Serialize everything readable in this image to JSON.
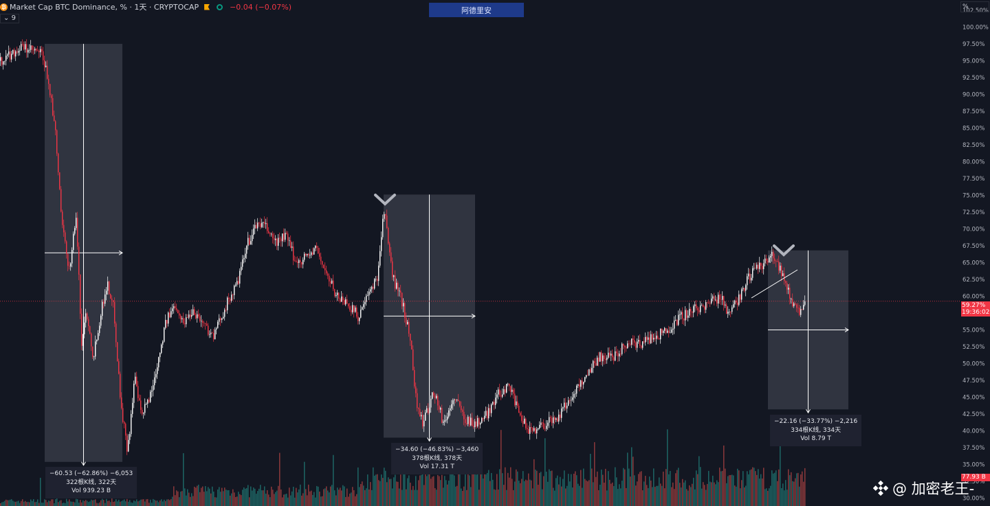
{
  "header": {
    "symbol_text": "Market Cap BTC Dominance, % · 1天 · CRYPTOCAP",
    "change": "−0.04 (−0.07%)",
    "indicator_count": "9"
  },
  "banner_text": "阿德里安",
  "price_axis": {
    "unit_label": "%",
    "current_value": "59.27%",
    "countdown": "19:36:02",
    "volume_value": "77.93 B"
  },
  "watermark": "@ 加密老王-",
  "colors": {
    "background": "#131722",
    "up_candle": "#ffffff",
    "down_candle": "#f23645",
    "measure_box": "#363a45",
    "up_volume": "#26a69a",
    "down_volume": "#ef5350"
  },
  "measurements": [
    {
      "change": "−60.53 (−62.86%) −6,053",
      "bars": "322根K线, 322天",
      "volume": "Vol 939.23 B"
    },
    {
      "change": "−34.60 (−46.83%) −3,460",
      "bars": "378根K线, 378天",
      "volume": "Vol 17.31 T"
    },
    {
      "change": "−22.16 (−33.77%) −2,216",
      "bars": "334根K线, 334天",
      "volume": "Vol 8.79 T"
    }
  ],
  "chart_data": {
    "type": "line",
    "title": "Market Cap BTC Dominance, % · 1天 · CRYPTOCAP",
    "xlabel": "",
    "ylabel": "%",
    "ylim": [
      29.6,
      102.6
    ],
    "y_ticks": [
      "30.00%",
      "32.50%",
      "35.00%",
      "37.50%",
      "40.00%",
      "42.50%",
      "45.00%",
      "47.50%",
      "50.00%",
      "52.50%",
      "55.00%",
      "57.50%",
      "60.00%",
      "62.50%",
      "65.00%",
      "67.50%",
      "70.00%",
      "72.50%",
      "75.00%",
      "77.50%",
      "80.00%",
      "82.50%",
      "85.00%",
      "87.50%",
      "90.00%",
      "92.50%",
      "95.00%",
      "97.50%",
      "100.00%",
      "102.50%"
    ],
    "current_price": 59.27,
    "series": [
      {
        "name": "BTC Dominance",
        "x": [
          0,
          30,
          60,
          70,
          80,
          90,
          100,
          110,
          118,
          125,
          135,
          145,
          155,
          165,
          175,
          185,
          195,
          205,
          220,
          240,
          255,
          265,
          280,
          295,
          310,
          325,
          335,
          345,
          360,
          375,
          388,
          400,
          415,
          430,
          445,
          460,
          475,
          490,
          505,
          520,
          535,
          548,
          558,
          570,
          585,
          597,
          605,
          615,
          630,
          645,
          660,
          675,
          690,
          705,
          720,
          740,
          755,
          770,
          790,
          810,
          830,
          850,
          870,
          890,
          910,
          930,
          950,
          970,
          990,
          1010,
          1030,
          1050,
          1060,
          1075,
          1090,
          1110,
          1125,
          1135,
          1145,
          1155,
          1162,
          1170
        ],
        "values": [
          95.0,
          97.0,
          96.0,
          92.0,
          84.0,
          70.0,
          64.0,
          72.0,
          53.0,
          58.0,
          51.0,
          57.0,
          62.0,
          58.0,
          44.0,
          37.0,
          48.0,
          42.0,
          46.0,
          56.0,
          59.0,
          56.0,
          58.0,
          56.0,
          54.0,
          58.0,
          60.0,
          62.0,
          68.0,
          71.0,
          70.0,
          68.0,
          69.0,
          65.0,
          66.0,
          67.0,
          63.0,
          60.0,
          59.0,
          57.0,
          60.0,
          63.0,
          73.0,
          63.0,
          59.0,
          53.0,
          44.0,
          41.0,
          46.0,
          41.0,
          45.0,
          42.0,
          41.0,
          42.0,
          45.0,
          47.0,
          42.0,
          40.0,
          41.0,
          42.0,
          45.0,
          48.0,
          51.0,
          51.0,
          53.0,
          53.0,
          54.0,
          55.0,
          57.0,
          58.0,
          59.0,
          60.0,
          57.0,
          60.0,
          63.0,
          65.0,
          66.0,
          64.0,
          61.0,
          58.0,
          58.0,
          59.27
        ]
      }
    ],
    "measure_ranges": [
      {
        "from_bar": 65,
        "to_bar": 178,
        "start": 96.3,
        "end": 35.7
      },
      {
        "from_bar": 558,
        "to_bar": 691,
        "start": 73.9,
        "end": 39.3
      },
      {
        "from_bar": 1117,
        "to_bar": 1234,
        "start": 65.6,
        "end": 43.5
      }
    ]
  }
}
